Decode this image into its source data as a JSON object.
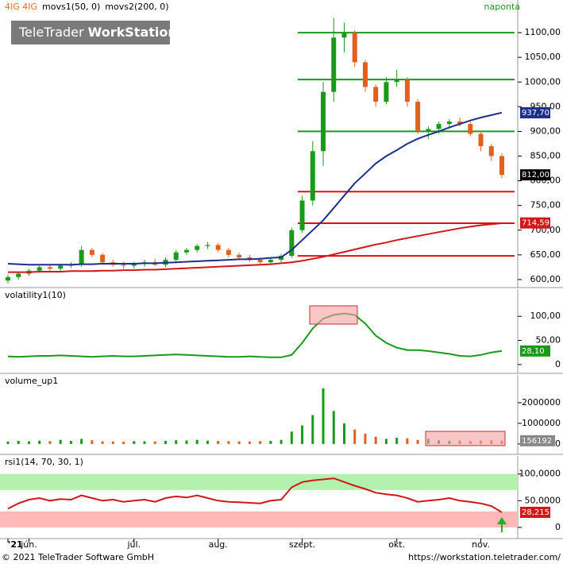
{
  "header": {
    "instrument": "4IG 4IG",
    "interval": "naponta",
    "logo_a": "TeleTrader",
    "logo_b": "WorkStation"
  },
  "footer": {
    "copyright": "© 2021 TeleTrader Software GmbH",
    "url": "https://workstation.teletrader.com/"
  },
  "chart_data": [
    {
      "type": "candlestick",
      "open": [
        598,
        605,
        612,
        618,
        625,
        622,
        628,
        630,
        660,
        650,
        635,
        630,
        628,
        632,
        635,
        630,
        640,
        655,
        660,
        668,
        670,
        660,
        650,
        645,
        640,
        635,
        640,
        648,
        700,
        760,
        860,
        980,
        1090,
        1100,
        1040,
        990,
        960,
        1000,
        1005,
        960,
        900,
        905,
        915,
        920,
        915,
        895,
        870,
        850
      ],
      "high": [
        610,
        616,
        622,
        628,
        630,
        632,
        635,
        668,
        664,
        654,
        640,
        636,
        636,
        640,
        642,
        645,
        660,
        664,
        672,
        676,
        674,
        664,
        654,
        650,
        645,
        645,
        652,
        705,
        770,
        880,
        1000,
        1130,
        1120,
        1105,
        1045,
        995,
        1010,
        1025,
        1010,
        965,
        910,
        920,
        925,
        928,
        920,
        900,
        875,
        855
      ],
      "low": [
        592,
        600,
        608,
        614,
        618,
        616,
        624,
        626,
        645,
        630,
        626,
        622,
        622,
        626,
        628,
        625,
        635,
        650,
        655,
        662,
        655,
        645,
        640,
        636,
        632,
        630,
        635,
        644,
        695,
        750,
        830,
        960,
        1060,
        1030,
        980,
        950,
        955,
        990,
        950,
        895,
        885,
        895,
        905,
        910,
        890,
        860,
        840,
        805
      ],
      "close": [
        605,
        612,
        618,
        625,
        622,
        628,
        630,
        660,
        650,
        635,
        630,
        628,
        632,
        635,
        630,
        640,
        655,
        660,
        668,
        670,
        660,
        650,
        645,
        640,
        635,
        640,
        648,
        700,
        760,
        860,
        980,
        1090,
        1100,
        1040,
        990,
        960,
        1000,
        1005,
        960,
        900,
        905,
        915,
        920,
        915,
        895,
        870,
        850,
        812
      ],
      "up_color": "#1a9a1a",
      "down_color": "#e0601e",
      "last_value": {
        "value": 812,
        "label": "812,00"
      },
      "series": [
        {
          "name": "movs1(50, 0)",
          "color": "#1c2f8c",
          "values": [
            632,
            631,
            630,
            630,
            630,
            630,
            630,
            631,
            631,
            632,
            632,
            632,
            632,
            633,
            633,
            634,
            635,
            636,
            637,
            638,
            639,
            640,
            641,
            641,
            642,
            644,
            645,
            660,
            680,
            700,
            720,
            745,
            770,
            795,
            815,
            835,
            850,
            862,
            875,
            885,
            893,
            900,
            908,
            915,
            922,
            928,
            933,
            938
          ],
          "last_value": {
            "value": 937.7,
            "label": "937,70"
          }
        },
        {
          "name": "movs2(200, 0)",
          "color": "#d01818",
          "values": [
            615,
            615,
            615,
            616,
            616,
            616,
            617,
            617,
            617,
            618,
            618,
            619,
            619,
            620,
            620,
            621,
            622,
            623,
            624,
            625,
            626,
            627,
            628,
            629,
            630,
            631,
            633,
            635,
            638,
            642,
            646,
            651,
            656,
            661,
            666,
            671,
            675,
            680,
            684,
            688,
            692,
            696,
            700,
            704,
            707,
            710,
            712,
            714
          ],
          "last_value": {
            "value": 714.59,
            "label": "714,59"
          }
        }
      ],
      "levels": [
        {
          "value": 1100,
          "color": "#1a9a1a"
        },
        {
          "value": 1005,
          "color": "#1a9a1a"
        },
        {
          "value": 900,
          "color": "#1a9a1a"
        },
        {
          "value": 778,
          "color": "#e01010"
        },
        {
          "value": 714,
          "color": "#e01010"
        },
        {
          "value": 648,
          "color": "#e01010"
        }
      ],
      "ylim": [
        587,
        1150
      ],
      "yticks": [
        {
          "value": 600,
          "label": "600,00"
        },
        {
          "value": 650,
          "label": "650,00"
        },
        {
          "value": 700,
          "label": "700,00"
        },
        {
          "value": 750,
          "label": "750,00"
        },
        {
          "value": 800,
          "label": "800,00"
        },
        {
          "value": 850,
          "label": "850,00"
        },
        {
          "value": 900,
          "label": "900,00"
        },
        {
          "value": 950,
          "label": "950,00"
        },
        {
          "value": 1000,
          "label": "1000,00"
        },
        {
          "value": 1050,
          "label": "1050,00"
        },
        {
          "value": 1100,
          "label": "1100,00"
        }
      ]
    },
    {
      "type": "line",
      "title": "volatility1(10)",
      "color": "#1a9a1a",
      "values": [
        17,
        16,
        17,
        18,
        18,
        19,
        18,
        17,
        16,
        17,
        18,
        17,
        17,
        18,
        19,
        20,
        21,
        20,
        19,
        18,
        17,
        16,
        16,
        17,
        16,
        15,
        15,
        20,
        45,
        75,
        95,
        103,
        106,
        103,
        85,
        60,
        45,
        35,
        30,
        30,
        28,
        25,
        22,
        18,
        17,
        20,
        25,
        28.1
      ],
      "last_value": {
        "value": 28.1,
        "label": "28,10"
      },
      "ylim": [
        -15,
        130
      ],
      "yticks": [
        0,
        {
          "value": 50,
          "label": "50,00"
        },
        {
          "value": 100,
          "label": "100,00"
        }
      ]
    },
    {
      "type": "bar",
      "title": "volume_up1",
      "values": [
        120000,
        150000,
        130000,
        160000,
        140000,
        200000,
        150000,
        250000,
        180000,
        130000,
        120000,
        110000,
        140000,
        130000,
        120000,
        150000,
        180000,
        170000,
        200000,
        160000,
        150000,
        140000,
        130000,
        120000,
        140000,
        150000,
        200000,
        600000,
        900000,
        1400000,
        2700000,
        1600000,
        1000000,
        700000,
        500000,
        350000,
        250000,
        300000,
        280000,
        200000,
        250000,
        180000,
        150000,
        170000,
        140000,
        160000,
        180000,
        156192
      ],
      "ylim": [
        -350000,
        2730000
      ],
      "yticks": [
        0,
        1000000,
        2000000
      ]
    },
    {
      "type": "line",
      "title": "rsi1(14, 70, 30, 1)",
      "color": "#d01818",
      "values": [
        35,
        45,
        52,
        55,
        50,
        53,
        52,
        60,
        55,
        50,
        52,
        48,
        50,
        52,
        48,
        55,
        58,
        56,
        60,
        55,
        50,
        48,
        47,
        46,
        45,
        50,
        52,
        75,
        85,
        88,
        90,
        92,
        85,
        78,
        72,
        65,
        62,
        60,
        55,
        48,
        50,
        52,
        55,
        50,
        48,
        45,
        40,
        28.2151
      ],
      "last_value": {
        "value": 28.2151,
        "label": "28,2151"
      },
      "bands": [
        {
          "from": 70,
          "to": 100,
          "color": "#b4f0ae"
        },
        {
          "from": 0,
          "to": 30,
          "color": "#ffb8b8"
        }
      ],
      "ylim": [
        -18,
        113
      ],
      "yticks": [
        0,
        {
          "value": 50,
          "label": "50,0000"
        },
        {
          "value": 100,
          "label": "100,0000"
        }
      ],
      "categories": [
        "'21",
        null,
        "jún.",
        null,
        null,
        null,
        null,
        null,
        null,
        null,
        null,
        null,
        "júl.",
        null,
        null,
        null,
        null,
        null,
        null,
        null,
        "aug.",
        null,
        null,
        null,
        null,
        null,
        null,
        null,
        "szept.",
        null,
        null,
        null,
        null,
        null,
        null,
        null,
        null,
        "okt.",
        null,
        null,
        null,
        null,
        null,
        null,
        null,
        "nov.",
        null,
        null
      ]
    }
  ]
}
